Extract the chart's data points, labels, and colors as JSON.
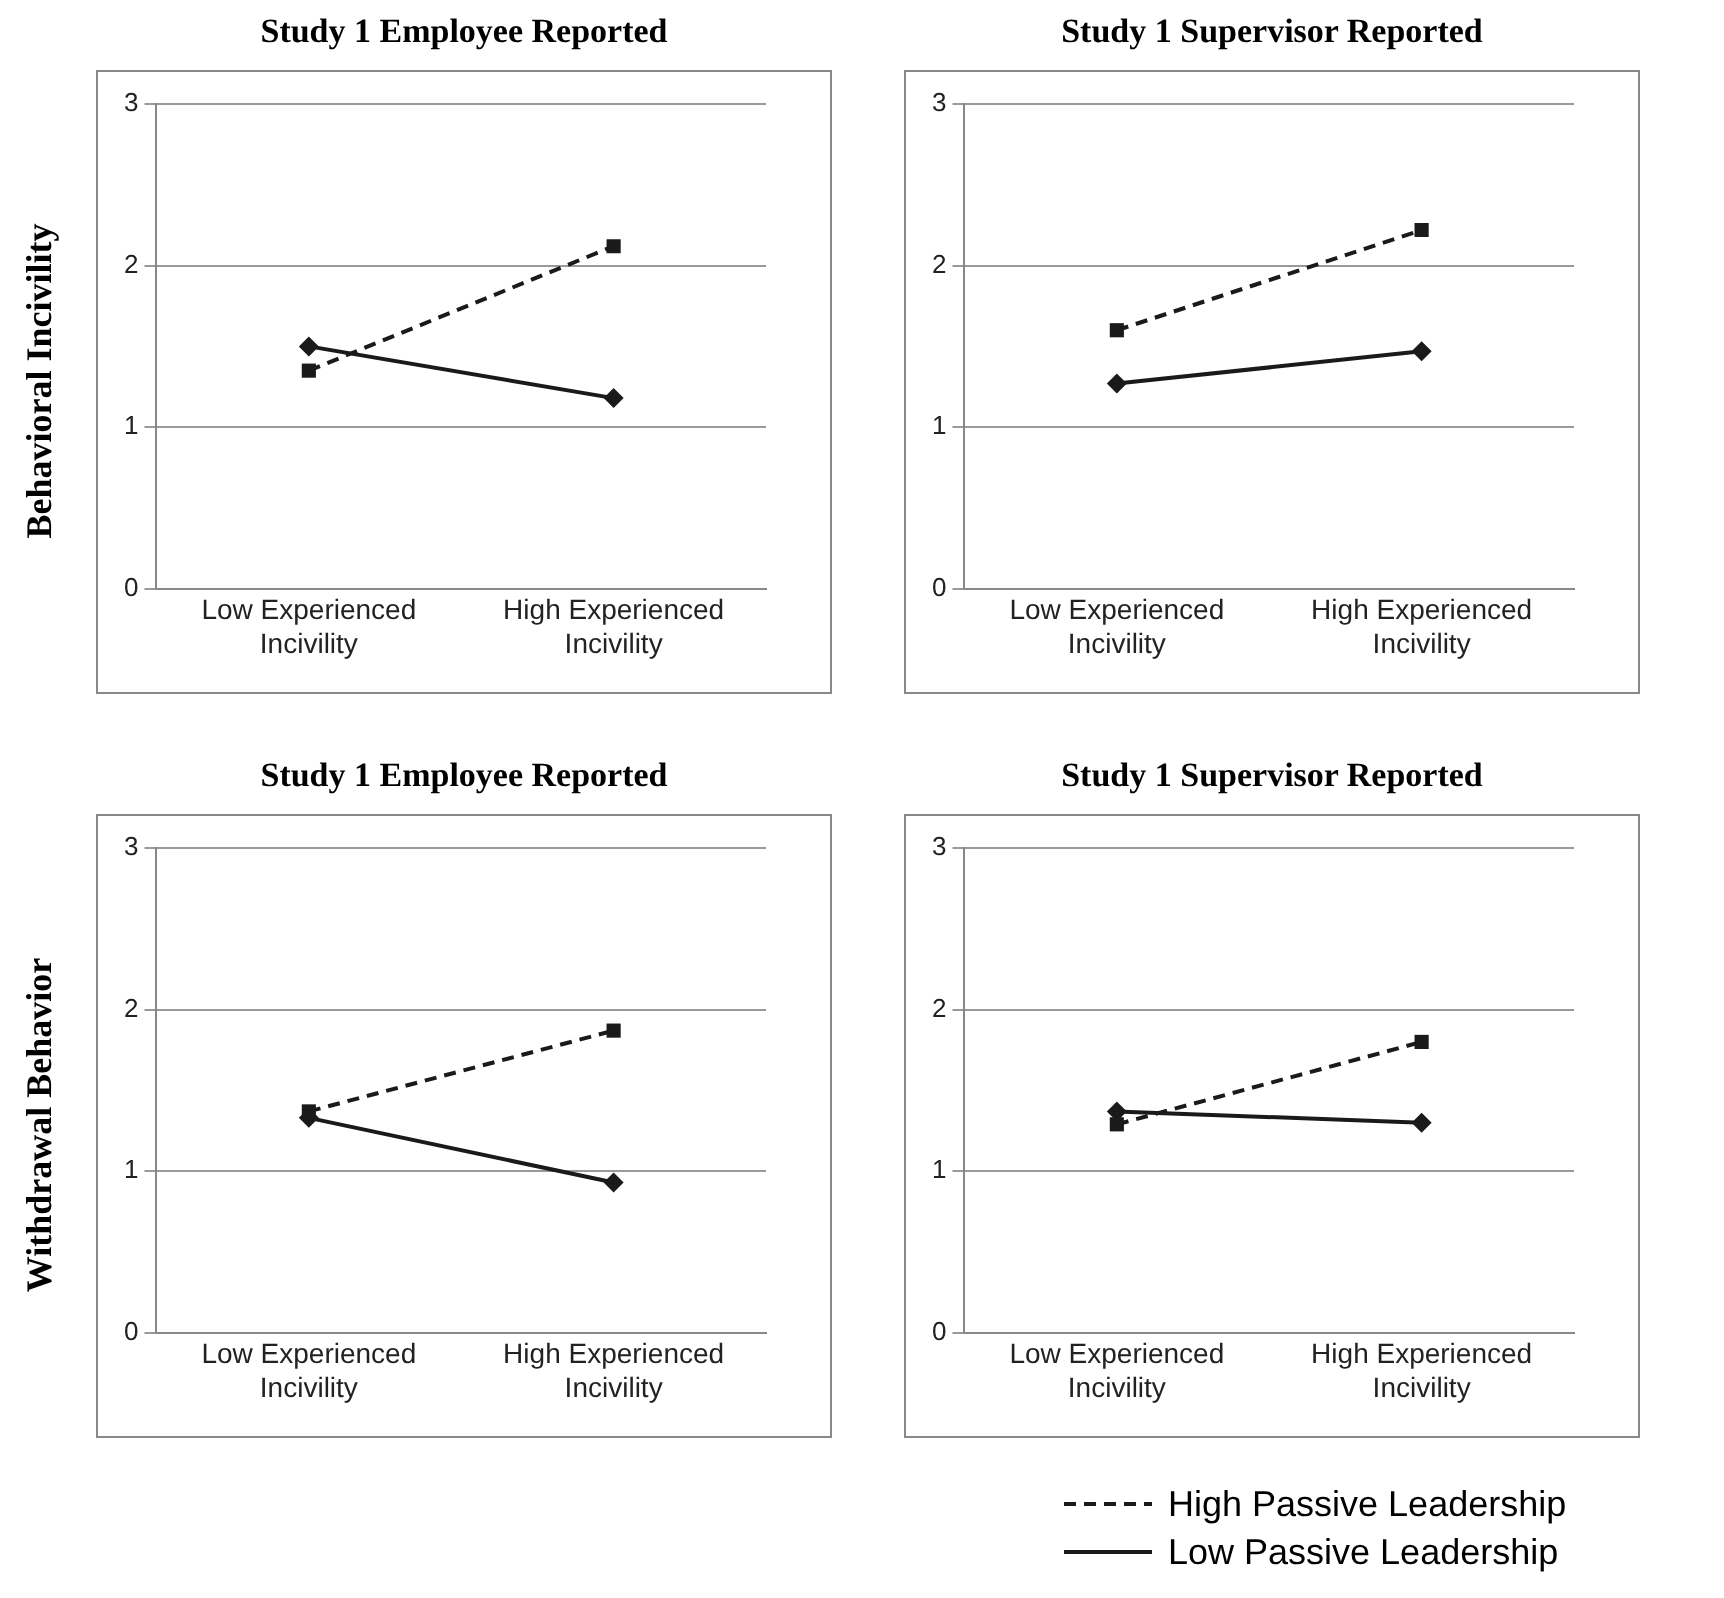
{
  "chart_data": [
    {
      "type": "line",
      "title": "Study 1 Employee Reported",
      "ylabel": "Behavioral Incivility",
      "categories": [
        "Low Experienced Incivility",
        "High Experienced Incivility"
      ],
      "ylim": [
        0,
        3
      ],
      "yticks": [
        0,
        1,
        2,
        3
      ],
      "grid": "y",
      "legend": false,
      "series": [
        {
          "color": "#1a1a1a",
          "values": [
            1.35,
            2.12
          ],
          "marker": "square",
          "line_style": "dashed"
        },
        {
          "color": "#1a1a1a",
          "values": [
            1.5,
            1.18
          ],
          "marker": "diamond",
          "line_style": "solid"
        }
      ]
    },
    {
      "type": "line",
      "title": "Study 1 Supervisor Reported",
      "categories": [
        "Low Experienced Incivility",
        "High Experienced Incivility"
      ],
      "ylim": [
        0,
        3
      ],
      "yticks": [
        0,
        1,
        2,
        3
      ],
      "grid": "y",
      "legend": false,
      "series": [
        {
          "color": "#1a1a1a",
          "values": [
            1.6,
            2.22
          ],
          "marker": "square",
          "line_style": "dashed"
        },
        {
          "color": "#1a1a1a",
          "values": [
            1.27,
            1.47
          ],
          "marker": "diamond",
          "line_style": "solid"
        }
      ]
    },
    {
      "type": "line",
      "title": "Study 1 Employee Reported",
      "ylabel": "Withdrawal Behavior",
      "categories": [
        "Low Experienced Incivility",
        "High Experienced Incivility"
      ],
      "ylim": [
        0,
        3
      ],
      "yticks": [
        0,
        1,
        2,
        3
      ],
      "grid": "y",
      "legend": false,
      "series": [
        {
          "color": "#1a1a1a",
          "values": [
            1.37,
            1.87
          ],
          "marker": "square",
          "line_style": "dashed"
        },
        {
          "color": "#1a1a1a",
          "values": [
            1.33,
            0.93
          ],
          "marker": "diamond",
          "line_style": "solid"
        }
      ]
    },
    {
      "type": "line",
      "title": "Study 1 Supervisor Reported",
      "categories": [
        "Low Experienced Incivility",
        "High Experienced Incivility"
      ],
      "ylim": [
        0,
        3
      ],
      "yticks": [
        0,
        1,
        2,
        3
      ],
      "grid": "y",
      "legend": "bottom",
      "series": [
        {
          "name": "High Passive Leadership",
          "color": "#1a1a1a",
          "values": [
            1.29,
            1.8
          ],
          "marker": "square",
          "line_style": "dashed"
        },
        {
          "name": "Low Passive Leadership",
          "color": "#1a1a1a",
          "values": [
            1.37,
            1.3
          ],
          "marker": "diamond",
          "line_style": "solid"
        }
      ]
    }
  ]
}
